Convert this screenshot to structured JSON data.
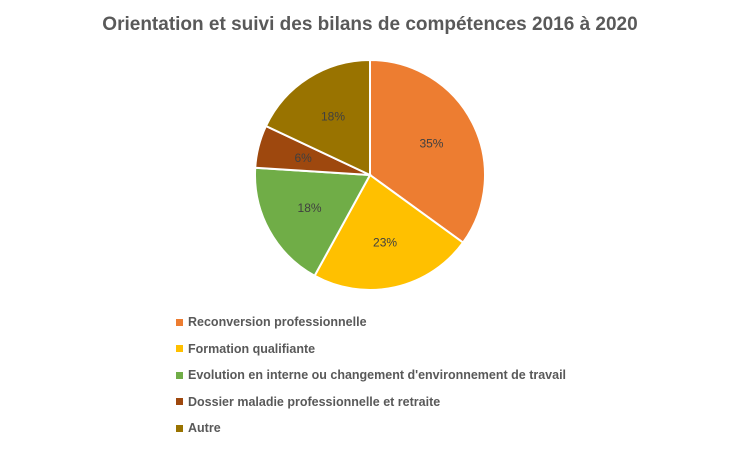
{
  "chart_data": {
    "type": "pie",
    "title": "Orientation et suivi des bilans de compétences 2016 à 2020",
    "categories": [
      "Reconversion professionnelle",
      "Formation qualifiante",
      "Evolution en interne ou changement d'environnement de travail",
      "Dossier maladie professionnelle et retraite",
      "Autre"
    ],
    "values": [
      35,
      23,
      18,
      6,
      18
    ],
    "data_labels": [
      "35%",
      "23%",
      "18%",
      "6%",
      "18%"
    ],
    "colors": [
      "#ED7D31",
      "#FFC000",
      "#70AD47",
      "#9E480E",
      "#997300"
    ],
    "legend_position": "bottom-left",
    "start_angle": "12 o'clock, clockwise"
  }
}
